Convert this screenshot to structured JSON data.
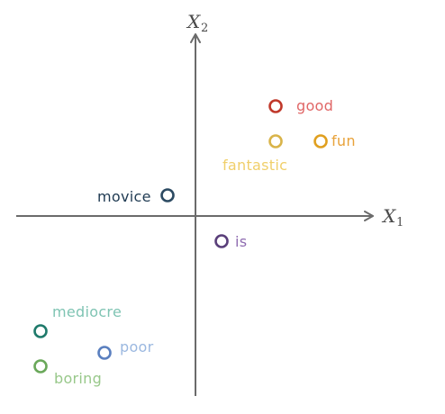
{
  "axes": {
    "x_label": "X",
    "x_sub": "1",
    "y_label": "X",
    "y_sub": "2",
    "color": "#6b6b6b"
  },
  "words": [
    {
      "id": "good",
      "text": "good",
      "color": "#e06666",
      "marker_color": "#c0392b"
    },
    {
      "id": "fun",
      "text": "fun",
      "color": "#e8a23a",
      "marker_color": "#e0a020"
    },
    {
      "id": "fantastic",
      "text": "fantastic",
      "color": "#f0cf6a",
      "marker_color": "#d9b44a"
    },
    {
      "id": "movice",
      "text": "movice",
      "color": "#1f3a52",
      "marker_color": "#2c4a62"
    },
    {
      "id": "is",
      "text": "is",
      "color": "#8e6bb0",
      "marker_color": "#5a3f7a"
    },
    {
      "id": "mediocre",
      "text": "mediocre",
      "color": "#7fc4b3",
      "marker_color": "#1f7a6b"
    },
    {
      "id": "poor",
      "text": "poor",
      "color": "#9bb8e0",
      "marker_color": "#5a7fbf"
    },
    {
      "id": "boring",
      "text": "boring",
      "color": "#98c88a",
      "marker_color": "#6aa85a"
    }
  ]
}
